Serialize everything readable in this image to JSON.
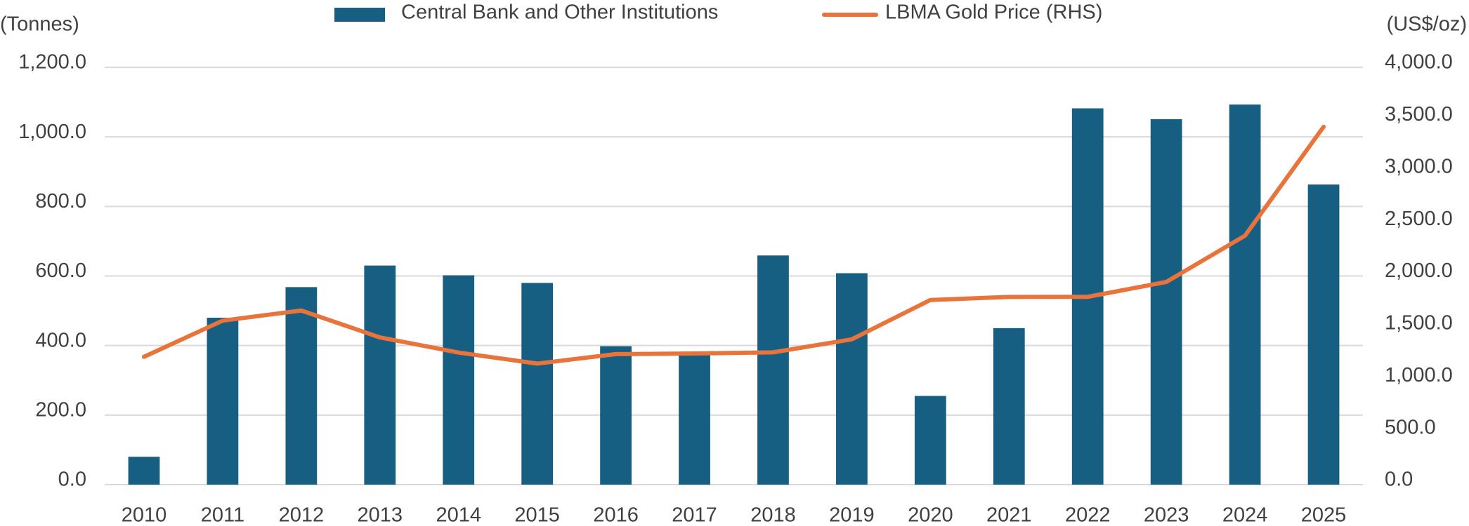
{
  "chart_data": {
    "type": "bar",
    "y_label": "(Tonnes)",
    "y2_label": "(US$/oz)",
    "categories": [
      "2010",
      "2011",
      "2012",
      "2013",
      "2014",
      "2015",
      "2016",
      "2017",
      "2018",
      "2019",
      "2020",
      "2021",
      "2022",
      "2023",
      "2024",
      "2025"
    ],
    "series": [
      {
        "name": "Central Bank and Other Institutions",
        "type": "bar",
        "color": "#175f82",
        "values": [
          80,
          480,
          568,
          630,
          602,
          580,
          398,
          375,
          659,
          608,
          255,
          450,
          1082,
          1051,
          1093,
          863
        ]
      },
      {
        "name": "LBMA Gold Price (RHS)",
        "type": "line",
        "axis": "y2",
        "color": "#e8743b",
        "values": [
          1225,
          1572,
          1669,
          1411,
          1266,
          1160,
          1251,
          1257,
          1268,
          1393,
          1770,
          1799,
          1800,
          1943,
          2386,
          3430
        ]
      }
    ],
    "ylim": [
      0,
      1200
    ],
    "yticks": [
      {
        "value": 0,
        "label": "0.0"
      },
      {
        "value": 200,
        "label": "200.0"
      },
      {
        "value": 400,
        "label": "400.0"
      },
      {
        "value": 600,
        "label": "600.0"
      },
      {
        "value": 800,
        "label": "800.0"
      },
      {
        "value": 1000,
        "label": "1,000.0"
      },
      {
        "value": 1200,
        "label": "1,200.0"
      }
    ],
    "y2lim": [
      0,
      4000
    ],
    "y2ticks": [
      {
        "value": 0,
        "label": "0.0"
      },
      {
        "value": 500,
        "label": "500.0"
      },
      {
        "value": 1000,
        "label": "1,000.0"
      },
      {
        "value": 1500,
        "label": "1,500.0"
      },
      {
        "value": 2000,
        "label": "2,000.0"
      },
      {
        "value": 2500,
        "label": "2,500.0"
      },
      {
        "value": 3000,
        "label": "3,000.0"
      },
      {
        "value": 3500,
        "label": "3,500.0"
      },
      {
        "value": 4000,
        "label": "4,000.0"
      }
    ],
    "grid": true,
    "legend": "top"
  }
}
